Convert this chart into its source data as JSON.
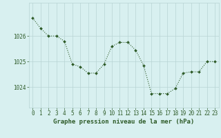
{
  "x": [
    0,
    1,
    2,
    3,
    4,
    5,
    6,
    7,
    8,
    9,
    10,
    11,
    12,
    13,
    14,
    15,
    16,
    17,
    18,
    19,
    20,
    21,
    22,
    23
  ],
  "y": [
    1026.7,
    1026.3,
    1026.0,
    1026.0,
    1025.8,
    1024.9,
    1024.8,
    1024.55,
    1024.55,
    1024.9,
    1025.6,
    1025.75,
    1025.75,
    1025.45,
    1024.85,
    1023.75,
    1023.75,
    1023.75,
    1023.95,
    1024.55,
    1024.6,
    1024.6,
    1025.0,
    1025.0
  ],
  "line_color": "#2d5a27",
  "marker": "D",
  "marker_size": 2.0,
  "bg_color": "#d8f0f0",
  "grid_color": "#b8d4d4",
  "axis_color": "#2d5a27",
  "xlabel": "Graphe pression niveau de la mer (hPa)",
  "xlabel_fontsize": 6.5,
  "ylabel_ticks": [
    1024,
    1025,
    1026
  ],
  "ylim": [
    1023.2,
    1027.3
  ],
  "xlim": [
    -0.5,
    23.5
  ],
  "tick_fontsize": 5.5,
  "title": ""
}
